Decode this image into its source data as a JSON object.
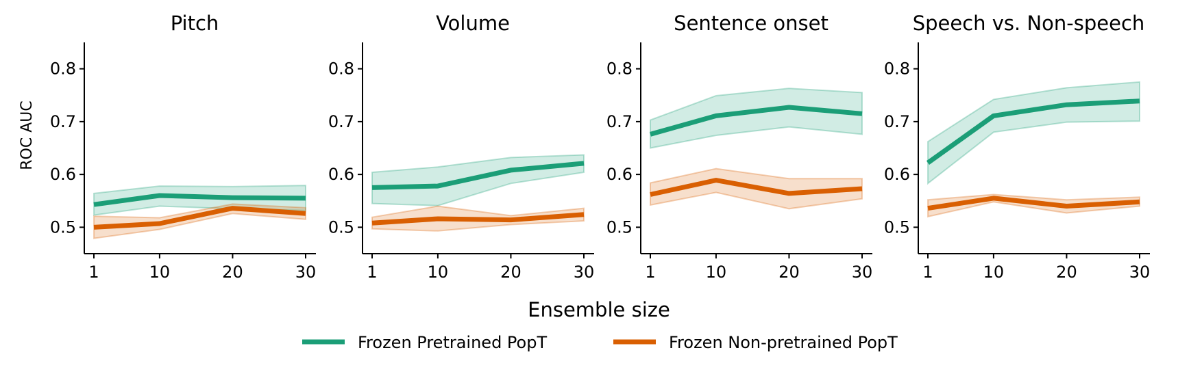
{
  "chart_data": {
    "type": "line",
    "xlabel": "Ensemble size",
    "ylabel": "ROC AUC",
    "x": [
      1,
      10,
      20,
      30
    ],
    "x_tick_labels": [
      "1",
      "10",
      "20",
      "30"
    ],
    "ylim": [
      0.45,
      0.85
    ],
    "yticks": [
      0.5,
      0.6,
      0.7,
      0.8
    ],
    "y_tick_labels": [
      "0.5",
      "0.6",
      "0.7",
      "0.8"
    ],
    "series_names": [
      "Frozen Pretrained PopT",
      "Frozen Non-pretrained PopT"
    ],
    "colors": [
      "#1b9e77",
      "#d95f02"
    ],
    "legend_position": "bottom-center",
    "panels": [
      {
        "title": "Pitch",
        "series": [
          {
            "name": "Frozen Pretrained PopT",
            "values": [
              0.543,
              0.56,
              0.556,
              0.555
            ],
            "lower": [
              0.523,
              0.54,
              0.535,
              0.532
            ],
            "upper": [
              0.564,
              0.578,
              0.577,
              0.579
            ]
          },
          {
            "name": "Frozen Non-pretrained PopT",
            "values": [
              0.5,
              0.507,
              0.536,
              0.526
            ],
            "lower": [
              0.479,
              0.496,
              0.526,
              0.515
            ],
            "upper": [
              0.521,
              0.518,
              0.544,
              0.537
            ]
          }
        ]
      },
      {
        "title": "Volume",
        "series": [
          {
            "name": "Frozen Pretrained PopT",
            "values": [
              0.575,
              0.578,
              0.608,
              0.621
            ],
            "lower": [
              0.545,
              0.541,
              0.583,
              0.604
            ],
            "upper": [
              0.604,
              0.614,
              0.632,
              0.637
            ]
          },
          {
            "name": "Frozen Non-pretrained PopT",
            "values": [
              0.508,
              0.516,
              0.514,
              0.524
            ],
            "lower": [
              0.497,
              0.493,
              0.505,
              0.512
            ],
            "upper": [
              0.519,
              0.54,
              0.522,
              0.536
            ]
          }
        ]
      },
      {
        "title": "Sentence onset",
        "series": [
          {
            "name": "Frozen Pretrained PopT",
            "values": [
              0.676,
              0.711,
              0.727,
              0.715
            ],
            "lower": [
              0.65,
              0.674,
              0.69,
              0.676
            ],
            "upper": [
              0.703,
              0.749,
              0.763,
              0.755
            ]
          },
          {
            "name": "Frozen Non-pretrained PopT",
            "values": [
              0.562,
              0.589,
              0.564,
              0.573
            ],
            "lower": [
              0.542,
              0.566,
              0.535,
              0.554
            ],
            "upper": [
              0.584,
              0.611,
              0.592,
              0.592
            ]
          }
        ]
      },
      {
        "title": "Speech vs. Non-speech",
        "series": [
          {
            "name": "Frozen Pretrained PopT",
            "values": [
              0.622,
              0.711,
              0.732,
              0.739
            ],
            "lower": [
              0.583,
              0.68,
              0.699,
              0.701
            ],
            "upper": [
              0.662,
              0.742,
              0.764,
              0.775
            ]
          },
          {
            "name": "Frozen Non-pretrained PopT",
            "values": [
              0.536,
              0.555,
              0.54,
              0.548
            ],
            "lower": [
              0.52,
              0.548,
              0.527,
              0.54
            ],
            "upper": [
              0.552,
              0.562,
              0.552,
              0.557
            ]
          }
        ]
      }
    ]
  }
}
